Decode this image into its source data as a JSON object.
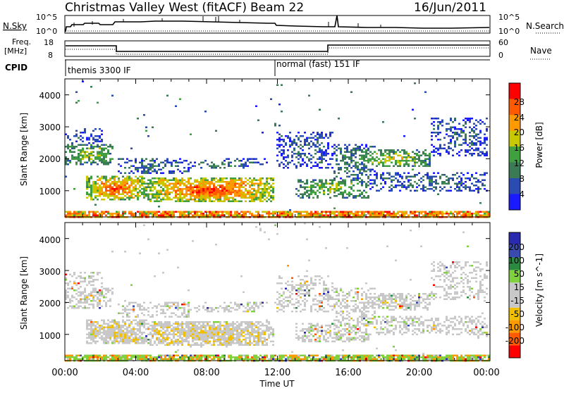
{
  "header": {
    "station": "Christmas Valley West (fitACF)",
    "beam": "Beam 22",
    "date": "16/Jun/2011"
  },
  "top_panels": {
    "nsky_label": "N.Sky",
    "nsearch_label": "N.Search",
    "nsky_ticks": [
      "10^5",
      "10^0"
    ],
    "nsearch_ticks": [
      "10^5",
      "10^0"
    ],
    "freq_label": "Freq.",
    "freq_unit": "[MHz]",
    "freq_ticks": [
      "18",
      "8"
    ],
    "nave_label": "Nave",
    "nave_ticks": [
      "60",
      "0"
    ],
    "cpid_label": "CPID",
    "cpid_modes": [
      "themis 3300 IF",
      "normal (fast) 151 IF"
    ]
  },
  "colors": {
    "power": [
      "#1a1aff",
      "#2a4bb0",
      "#3a7a55",
      "#40a040",
      "#c8c800",
      "#ff9900",
      "#ff5a00",
      "#ff0000"
    ],
    "velocity": [
      "#2a2ab0",
      "#3a4bb0",
      "#2a8a40",
      "#80d040",
      "#c8c8c8",
      "#c8c8c8",
      "#f0c000",
      "#ff9900",
      "#ff5a00",
      "#ff0000"
    ]
  },
  "chart_data": [
    {
      "type": "heatmap",
      "name": "power",
      "ylabel": "Slant Range [km]",
      "yticks": [
        "4000",
        "3000",
        "2000",
        "1000"
      ],
      "ylim": [
        180,
        4500
      ],
      "xlim": [
        0,
        24
      ],
      "colorbar_label": "Power [dB]",
      "colorbar_ticks": [
        "28",
        "24",
        "20",
        "16",
        "12",
        "8",
        "4"
      ],
      "colorbar_range": [
        0,
        32
      ]
    },
    {
      "type": "heatmap",
      "name": "velocity",
      "ylabel": "Slant Range [km]",
      "yticks": [
        "4000",
        "3000",
        "2000",
        "1000"
      ],
      "ylim": [
        180,
        4500
      ],
      "xlim": [
        0,
        24
      ],
      "colorbar_label": "Velocity [m s^-1]",
      "colorbar_ticks": [
        "200",
        "100",
        "50",
        "15",
        "-15",
        "-50",
        "-100",
        "-200"
      ]
    }
  ],
  "xaxis": {
    "label": "Time UT",
    "ticks": [
      "00:00",
      "04:00",
      "08:00",
      "12:00",
      "16:00",
      "20:00",
      "00:00"
    ]
  }
}
